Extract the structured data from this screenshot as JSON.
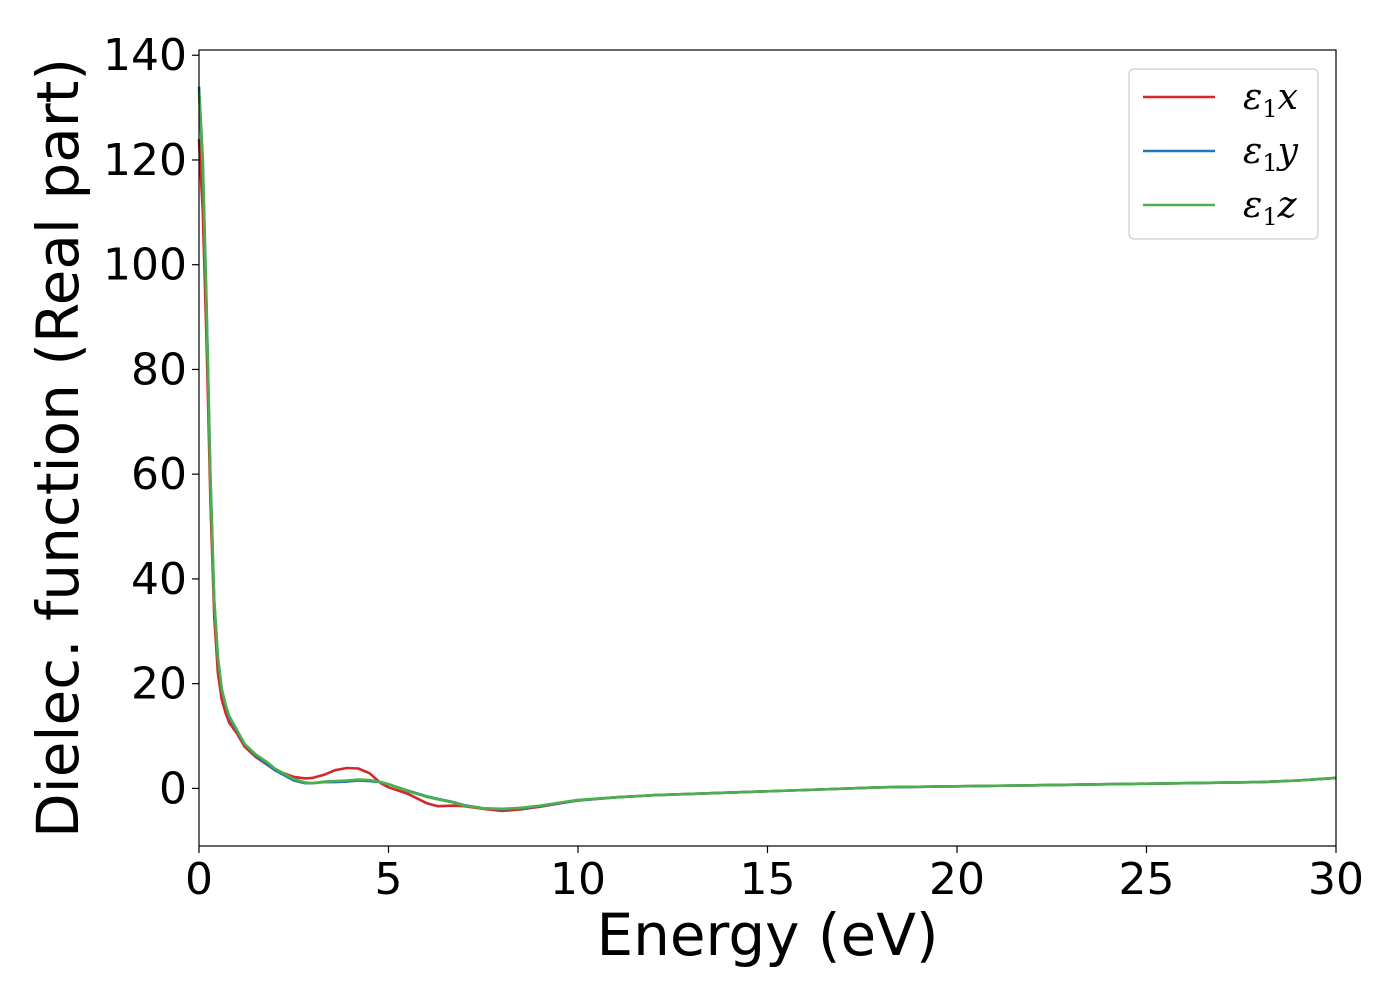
{
  "chart_data": {
    "type": "line",
    "title": "",
    "xlabel": "Energy (eV)",
    "ylabel": "Dielec. function (Real part)",
    "xlim": [
      0,
      30
    ],
    "ylim": [
      -11,
      141
    ],
    "xticks": [
      0,
      5,
      10,
      15,
      20,
      25,
      30
    ],
    "yticks": [
      0,
      20,
      40,
      60,
      80,
      100,
      120,
      140
    ],
    "grid": false,
    "legend_position": "top-right",
    "series": [
      {
        "name": "ε1x",
        "legend_symbol": "ε",
        "legend_sub": "1",
        "legend_var": "x",
        "color": "#d62728",
        "x": [
          0,
          0.1,
          0.2,
          0.3,
          0.4,
          0.5,
          0.6,
          0.7,
          0.8,
          1.0,
          1.2,
          1.5,
          1.8,
          2.0,
          2.5,
          2.8,
          3.0,
          3.3,
          3.6,
          3.9,
          4.2,
          4.5,
          4.8,
          5.0,
          5.5,
          6.0,
          6.3,
          6.7,
          7.0,
          7.5,
          8.0,
          8.5,
          9.0,
          10.0,
          11.0,
          12.0,
          14.0,
          16.0,
          18.0,
          20.0,
          22.0,
          24.0,
          26.0,
          28.0,
          29.0,
          30.0
        ],
        "y": [
          124,
          110,
          85,
          55,
          33,
          22,
          17,
          14.5,
          12.5,
          10.5,
          8,
          6,
          4.5,
          3.5,
          2.2,
          1.9,
          2.0,
          2.6,
          3.5,
          3.9,
          3.8,
          2.9,
          1.0,
          0.2,
          -1.0,
          -2.8,
          -3.4,
          -3.3,
          -3.4,
          -3.9,
          -4.3,
          -4.0,
          -3.5,
          -2.3,
          -1.7,
          -1.3,
          -0.8,
          -0.3,
          0.2,
          0.4,
          0.6,
          0.8,
          1.0,
          1.2,
          1.5,
          2.0
        ]
      },
      {
        "name": "ε1y",
        "legend_symbol": "ε",
        "legend_sub": "1",
        "legend_var": "y",
        "color": "#1f77b4",
        "x": [
          0,
          0.1,
          0.2,
          0.3,
          0.4,
          0.5,
          0.6,
          0.7,
          0.8,
          1.0,
          1.2,
          1.5,
          1.8,
          2.0,
          2.5,
          2.8,
          3.0,
          3.3,
          3.6,
          3.9,
          4.2,
          4.5,
          4.8,
          5.0,
          5.5,
          6.0,
          6.3,
          6.7,
          7.0,
          7.5,
          8.0,
          8.5,
          9.0,
          10.0,
          11.0,
          12.0,
          14.0,
          16.0,
          18.0,
          20.0,
          22.0,
          24.0,
          26.0,
          28.0,
          29.0,
          30.0
        ],
        "y": [
          134,
          120,
          92,
          60,
          36,
          25,
          19,
          16,
          13.5,
          11,
          8.5,
          6.2,
          4.6,
          3.5,
          1.5,
          1.0,
          1.0,
          1.2,
          1.2,
          1.3,
          1.5,
          1.4,
          1.2,
          0.8,
          -0.4,
          -1.5,
          -2.0,
          -2.6,
          -3.2,
          -3.8,
          -4.0,
          -3.8,
          -3.4,
          -2.3,
          -1.7,
          -1.3,
          -0.8,
          -0.3,
          0.2,
          0.4,
          0.6,
          0.8,
          1.0,
          1.2,
          1.5,
          2.0
        ]
      },
      {
        "name": "ε1z",
        "legend_symbol": "ε",
        "legend_sub": "1",
        "legend_var": "z",
        "color": "#4daf4a",
        "x": [
          0,
          0.1,
          0.2,
          0.3,
          0.4,
          0.5,
          0.6,
          0.7,
          0.8,
          1.0,
          1.2,
          1.5,
          1.8,
          2.0,
          2.5,
          2.8,
          3.0,
          3.3,
          3.6,
          3.9,
          4.2,
          4.5,
          4.8,
          5.0,
          5.5,
          6.0,
          6.3,
          6.7,
          7.0,
          7.5,
          8.0,
          8.5,
          9.0,
          10.0,
          11.0,
          12.0,
          14.0,
          16.0,
          18.0,
          20.0,
          22.0,
          24.0,
          26.0,
          28.0,
          29.0,
          30.0
        ],
        "y": [
          133,
          119,
          91,
          59,
          36,
          25,
          19,
          16,
          13.8,
          11.2,
          8.5,
          6.5,
          5.0,
          3.8,
          1.8,
          1.1,
          1.0,
          1.3,
          1.4,
          1.5,
          1.7,
          1.6,
          1.2,
          0.8,
          -0.5,
          -1.6,
          -2.1,
          -2.7,
          -3.3,
          -3.8,
          -3.9,
          -3.7,
          -3.3,
          -2.2,
          -1.7,
          -1.3,
          -0.8,
          -0.3,
          0.2,
          0.4,
          0.6,
          0.8,
          1.0,
          1.2,
          1.5,
          2.0
        ]
      }
    ]
  }
}
